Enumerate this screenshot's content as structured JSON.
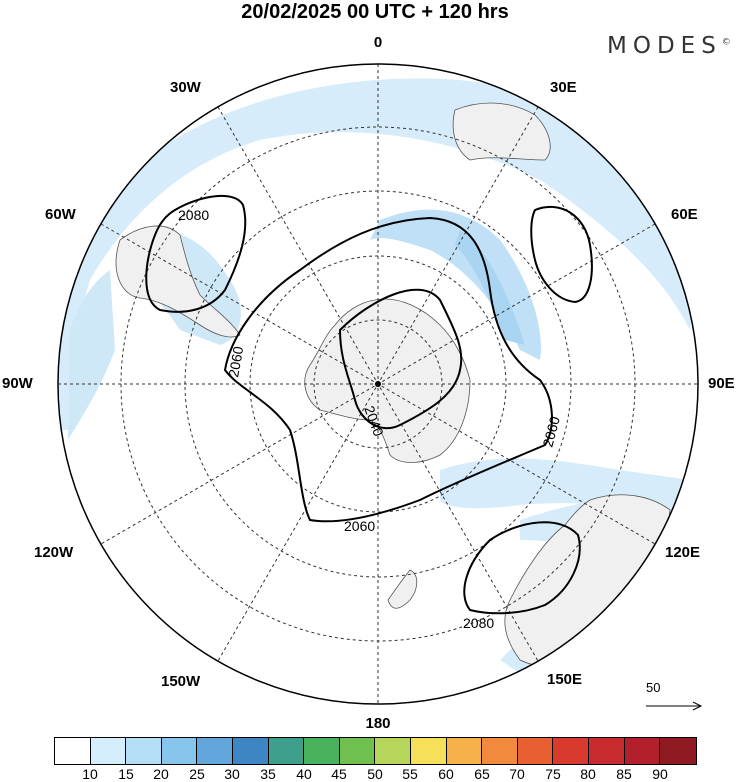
{
  "title": "20/02/2025  00 UTC  + 120 hrs",
  "brand": "MODES",
  "brand_mark": "©",
  "map": {
    "projection": "south polar stereographic",
    "longitude_labels": [
      "0",
      "30E",
      "60E",
      "90E",
      "120E",
      "150E",
      "180",
      "150W",
      "120W",
      "90W",
      "60W",
      "30W"
    ],
    "contour_labels": [
      "2080",
      "2060",
      "2040",
      "2060",
      "2060",
      "2080"
    ],
    "colors": {
      "ocean": "#ffffff",
      "land": "#f0f0f0",
      "wind_light": "#cfe8f8",
      "wind_mid": "#b3dcf5",
      "wind_strong": "#9fd1f2"
    }
  },
  "vector_ref": {
    "label": "50"
  },
  "colorbar": {
    "ticks": [
      "10",
      "15",
      "20",
      "25",
      "30",
      "35",
      "40",
      "45",
      "50",
      "55",
      "60",
      "65",
      "70",
      "75",
      "80",
      "85",
      "90"
    ],
    "colors": [
      "#ffffff",
      "#d4eefc",
      "#b3e0f7",
      "#86c5ec",
      "#62a6dc",
      "#3e86c3",
      "#3f9f8d",
      "#48b25c",
      "#6fc04f",
      "#b5d65a",
      "#f6e05a",
      "#f5b14a",
      "#f28a3e",
      "#e85f32",
      "#d93a2e",
      "#c82a2e",
      "#b31f2a",
      "#8f1a22"
    ]
  }
}
